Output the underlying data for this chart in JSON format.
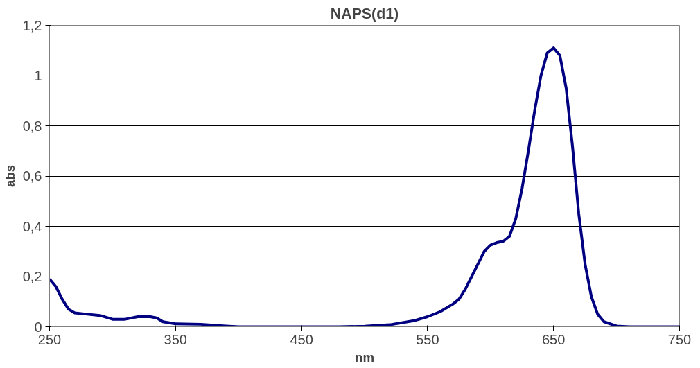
{
  "chart_data": {
    "type": "line",
    "title": "NAPS(d1)",
    "xlabel": "nm",
    "ylabel": "abs",
    "x": [
      250,
      255,
      260,
      265,
      270,
      280,
      290,
      300,
      310,
      320,
      330,
      335,
      340,
      350,
      370,
      390,
      400,
      480,
      500,
      520,
      540,
      550,
      560,
      570,
      575,
      580,
      585,
      590,
      595,
      600,
      605,
      610,
      615,
      620,
      625,
      630,
      635,
      640,
      645,
      650,
      655,
      660,
      665,
      670,
      675,
      680,
      685,
      690,
      700,
      710,
      750
    ],
    "series": [
      {
        "color": "#000080",
        "values": [
          0.19,
          0.16,
          0.11,
          0.07,
          0.055,
          0.05,
          0.045,
          0.03,
          0.03,
          0.04,
          0.04,
          0.035,
          0.02,
          0.012,
          0.01,
          0.003,
          0,
          0,
          0.002,
          0.008,
          0.025,
          0.04,
          0.06,
          0.09,
          0.11,
          0.15,
          0.2,
          0.25,
          0.3,
          0.325,
          0.335,
          0.34,
          0.36,
          0.43,
          0.55,
          0.7,
          0.86,
          1.0,
          1.09,
          1.11,
          1.08,
          0.95,
          0.72,
          0.45,
          0.25,
          0.12,
          0.05,
          0.02,
          0.003,
          0,
          0
        ]
      }
    ],
    "xlim": [
      250,
      750
    ],
    "xticks": [
      250,
      350,
      450,
      550,
      650,
      750
    ],
    "ylim": [
      0,
      1.2
    ],
    "yticks": [
      0,
      {
        "value": 0.2,
        "label": "0,2"
      },
      {
        "value": 0.4,
        "label": "0,4"
      },
      {
        "value": 0.6,
        "label": "0,6"
      },
      {
        "value": 0.8,
        "label": "0,8"
      },
      1,
      {
        "value": 1.2,
        "label": "1,2"
      }
    ],
    "grid": "y",
    "marker": "none",
    "line_style": "solid"
  }
}
